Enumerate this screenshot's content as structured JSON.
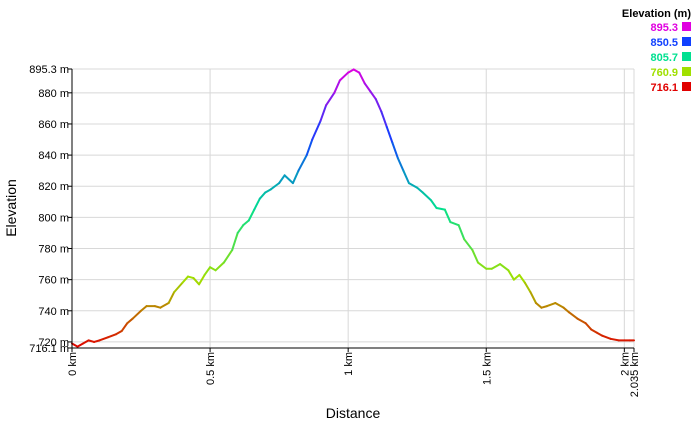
{
  "chart_data": {
    "type": "line",
    "xlabel": "Distance",
    "ylabel": "Elevation",
    "xlim": [
      0,
      2.035
    ],
    "ylim": [
      716.1,
      895.3
    ],
    "x_ticks": [
      {
        "value": 0,
        "label": "0 km"
      },
      {
        "value": 0.5,
        "label": "0.5 km"
      },
      {
        "value": 1,
        "label": "1 km"
      },
      {
        "value": 1.5,
        "label": "1.5 km"
      },
      {
        "value": 2,
        "label": "2 km"
      },
      {
        "value": 2.035,
        "label": "2.035 km"
      }
    ],
    "y_ticks": [
      {
        "value": 716.1,
        "label": "716.1 m"
      },
      {
        "value": 720,
        "label": "720 m"
      },
      {
        "value": 740,
        "label": "740 m"
      },
      {
        "value": 760,
        "label": "760 m"
      },
      {
        "value": 780,
        "label": "780 m"
      },
      {
        "value": 800,
        "label": "800 m"
      },
      {
        "value": 820,
        "label": "820 m"
      },
      {
        "value": 840,
        "label": "840 m"
      },
      {
        "value": 860,
        "label": "860 m"
      },
      {
        "value": 880,
        "label": "880 m"
      },
      {
        "value": 895.3,
        "label": "895.3 m"
      }
    ],
    "grid": true,
    "legend": {
      "title": "Elevation (m)",
      "position": "top-right",
      "entries": [
        {
          "label": "895.3",
          "color": "#e000e0"
        },
        {
          "label": "850.5",
          "color": "#1040ff"
        },
        {
          "label": "805.7",
          "color": "#00e090"
        },
        {
          "label": "760.9",
          "color": "#a0e000"
        },
        {
          "label": "716.1",
          "color": "#e00000"
        }
      ]
    },
    "series": [
      {
        "x": [
          0,
          0.02,
          0.04,
          0.06,
          0.08,
          0.1,
          0.13,
          0.16,
          0.18,
          0.2,
          0.22,
          0.25,
          0.27,
          0.3,
          0.32,
          0.35,
          0.37,
          0.4,
          0.42,
          0.44,
          0.46,
          0.48,
          0.5,
          0.52,
          0.55,
          0.58,
          0.6,
          0.62,
          0.64,
          0.66,
          0.68,
          0.7,
          0.72,
          0.75,
          0.77,
          0.8,
          0.82,
          0.85,
          0.87,
          0.9,
          0.92,
          0.95,
          0.97,
          1.0,
          1.02,
          1.04,
          1.06,
          1.08,
          1.1,
          1.12,
          1.14,
          1.16,
          1.18,
          1.2,
          1.22,
          1.25,
          1.27,
          1.3,
          1.32,
          1.35,
          1.37,
          1.4,
          1.42,
          1.45,
          1.47,
          1.5,
          1.52,
          1.55,
          1.58,
          1.6,
          1.62,
          1.64,
          1.66,
          1.68,
          1.7,
          1.72,
          1.75,
          1.78,
          1.8,
          1.83,
          1.86,
          1.88,
          1.9,
          1.92,
          1.95,
          1.98,
          2.0,
          2.02,
          2.035
        ],
        "y": [
          719,
          717,
          719,
          721,
          720,
          721,
          723,
          725,
          727,
          732,
          735,
          740,
          743,
          743,
          742,
          745,
          752,
          758,
          762,
          761,
          757,
          763,
          768,
          766,
          771,
          779,
          790,
          795,
          798,
          805,
          812,
          816,
          818,
          822,
          827,
          822,
          830,
          840,
          850,
          862,
          872,
          880,
          888,
          893,
          895,
          893,
          886,
          881,
          876,
          868,
          858,
          848,
          838,
          830,
          822,
          819,
          816,
          811,
          806,
          805,
          797,
          795,
          786,
          779,
          771,
          767,
          767,
          770,
          766,
          760,
          763,
          758,
          752,
          745,
          742,
          743,
          745,
          742,
          739,
          735,
          732,
          728,
          726,
          724,
          722,
          721,
          721,
          721,
          721
        ]
      }
    ]
  }
}
